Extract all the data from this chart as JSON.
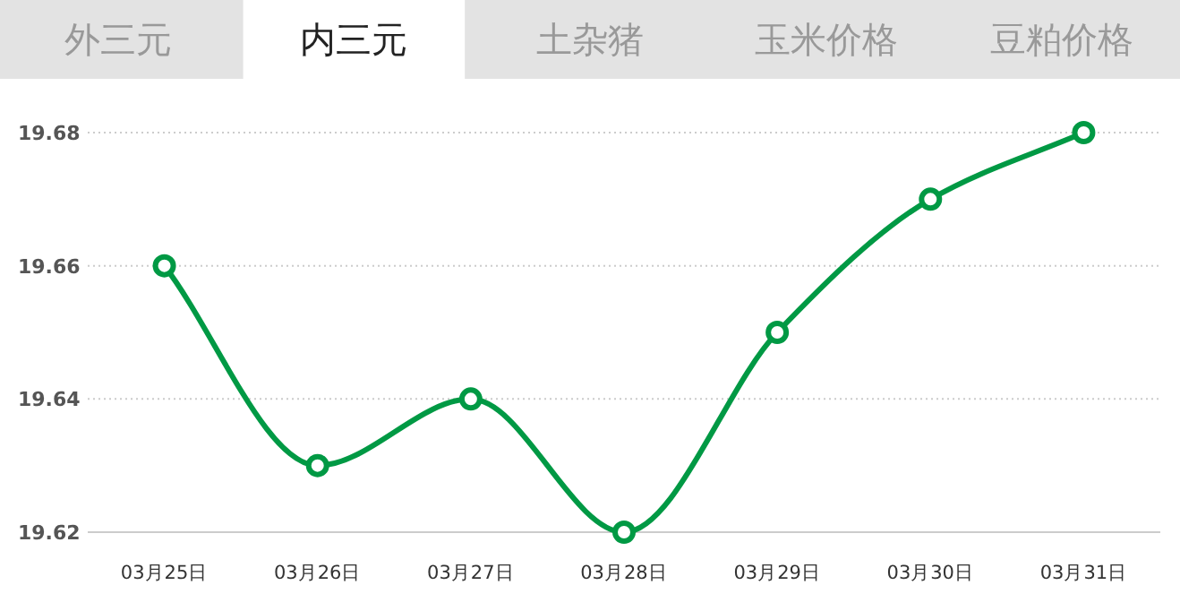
{
  "chart_data": {
    "type": "line",
    "annotations": [
      "外三元",
      "内三元",
      "土杂猪",
      "玉米价格",
      "豆粕价格"
    ],
    "categories": [
      "03月25日",
      "03月26日",
      "03月27日",
      "03月28日",
      "03月29日",
      "03月30日",
      "03月31日"
    ],
    "series": [
      {
        "color": "#009944",
        "values": [
          19.66,
          19.63,
          19.64,
          19.62,
          19.65,
          19.67,
          19.68
        ]
      }
    ],
    "ylim": [
      19.62,
      19.68
    ],
    "yticks": [
      19.62,
      19.64,
      19.66,
      19.68
    ],
    "grid": "y",
    "marker": "circle",
    "line_style": "solid"
  }
}
